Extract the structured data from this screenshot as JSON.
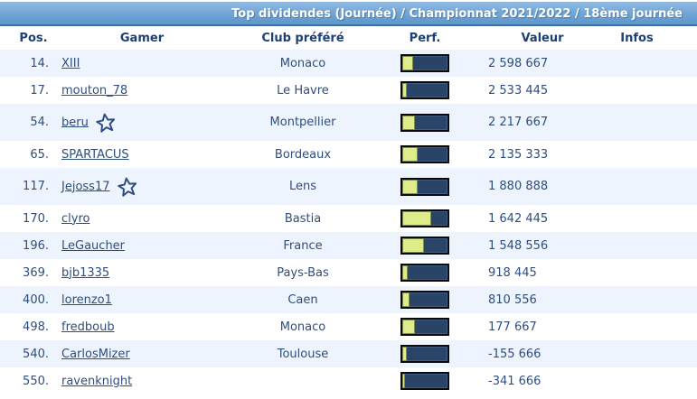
{
  "header": {
    "title": "Top dividendes (Journée) / Championnat 2021/2022 / 18ème journée"
  },
  "table": {
    "columns": [
      "Pos.",
      "Gamer",
      "Club préféré",
      "Perf.",
      "Valeur",
      "Infos"
    ],
    "rows": [
      {
        "pos": "14.",
        "gamer": "XIII",
        "starred": false,
        "club": "Monaco",
        "perf_pct": 24,
        "valeur": "2 598 667",
        "infos": ""
      },
      {
        "pos": "17.",
        "gamer": "mouton_78",
        "starred": false,
        "club": "Le Havre",
        "perf_pct": 10,
        "valeur": "2 533 445",
        "infos": ""
      },
      {
        "pos": "54.",
        "gamer": "beru",
        "starred": true,
        "club": "Montpellier",
        "perf_pct": 27,
        "valeur": "2 217 667",
        "infos": ""
      },
      {
        "pos": "65.",
        "gamer": "SPARTACUS",
        "starred": false,
        "club": "Bordeaux",
        "perf_pct": 33,
        "valeur": "2 135 333",
        "infos": ""
      },
      {
        "pos": "117.",
        "gamer": "Jejoss17",
        "starred": true,
        "club": "Lens",
        "perf_pct": 34,
        "valeur": "1 880 888",
        "infos": ""
      },
      {
        "pos": "170.",
        "gamer": "clyro",
        "starred": false,
        "club": "Bastia",
        "perf_pct": 64,
        "valeur": "1 642 445",
        "infos": ""
      },
      {
        "pos": "196.",
        "gamer": "LeGaucher",
        "starred": false,
        "club": "France",
        "perf_pct": 47,
        "valeur": "1 548 556",
        "infos": ""
      },
      {
        "pos": "369.",
        "gamer": "bjb1335",
        "starred": false,
        "club": "Pays-Bas",
        "perf_pct": 11,
        "valeur": "918 445",
        "infos": ""
      },
      {
        "pos": "400.",
        "gamer": "lorenzo1",
        "starred": false,
        "club": "Caen",
        "perf_pct": 16,
        "valeur": "810 556",
        "infos": ""
      },
      {
        "pos": "498.",
        "gamer": "fredboub",
        "starred": false,
        "club": "Monaco",
        "perf_pct": 28,
        "valeur": "177 667",
        "infos": ""
      },
      {
        "pos": "540.",
        "gamer": "CarlosMizer",
        "starred": false,
        "club": "Toulouse",
        "perf_pct": 9,
        "valeur": "-155 666",
        "infos": ""
      },
      {
        "pos": "550.",
        "gamer": "ravenknight",
        "starred": false,
        "club": "",
        "perf_pct": 6,
        "valeur": "-341 666",
        "infos": ""
      }
    ]
  },
  "colors": {
    "title_gradient_top": "#93bce4",
    "title_gradient_bottom": "#5e97c9",
    "row_alt_background": "#edf4fd",
    "navy_text": "#2e4e7e",
    "perf_bar_navy": "#2a4467",
    "perf_bar_yellow": "#dfec8a"
  }
}
